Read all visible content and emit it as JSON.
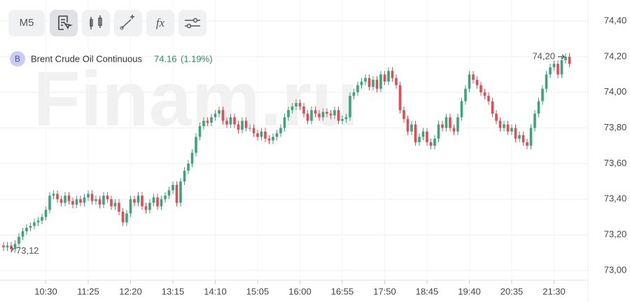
{
  "toolbar": {
    "timeframe": "M5",
    "function_icon": "fx"
  },
  "chart_data": {
    "type": "candlestick",
    "watermark": "Finam.ru",
    "legend": {
      "badge": "B",
      "title": "Brent Crude Oil Continuous",
      "price": "74.16",
      "change": "(1.19%)"
    },
    "up_color": "#3aa57b",
    "down_color": "#e04d55",
    "grid": true,
    "ylim": [
      72.945,
      74.518
    ],
    "yticks": [
      {
        "value": 73.0,
        "label": "73,00"
      },
      {
        "value": 73.2,
        "label": "73,20"
      },
      {
        "value": 73.4,
        "label": "73,40"
      },
      {
        "value": 73.6,
        "label": "73,60"
      },
      {
        "value": 73.8,
        "label": "73,80"
      },
      {
        "value": 74.0,
        "label": "74,00"
      },
      {
        "value": 74.2,
        "label": "74,20"
      },
      {
        "value": 74.4,
        "label": "74,40"
      }
    ],
    "annotations": [
      {
        "value": 74.2,
        "label": "74,20"
      },
      {
        "value": 73.12,
        "label": "73,12"
      }
    ],
    "categories": [
      null,
      null,
      null,
      null,
      null,
      null,
      null,
      null,
      null,
      null,
      null,
      "10:30",
      null,
      null,
      null,
      null,
      null,
      null,
      null,
      null,
      null,
      null,
      "11:25",
      null,
      null,
      null,
      null,
      null,
      null,
      null,
      null,
      null,
      null,
      "12:20",
      null,
      null,
      null,
      null,
      null,
      null,
      null,
      null,
      null,
      null,
      "13:15",
      null,
      null,
      null,
      null,
      null,
      null,
      null,
      null,
      null,
      null,
      "14:10",
      null,
      null,
      null,
      null,
      null,
      null,
      null,
      null,
      null,
      null,
      "15:05",
      null,
      null,
      null,
      null,
      null,
      null,
      null,
      null,
      null,
      null,
      "16:00",
      null,
      null,
      null,
      null,
      null,
      null,
      null,
      null,
      null,
      null,
      "16:55",
      null,
      null,
      null,
      null,
      null,
      null,
      null,
      null,
      null,
      null,
      "17:50",
      null,
      null,
      null,
      null,
      null,
      null,
      null,
      null,
      null,
      null,
      "18:45",
      null,
      null,
      null,
      null,
      null,
      null,
      null,
      null,
      null,
      null,
      "19:40",
      null,
      null,
      null,
      null,
      null,
      null,
      null,
      null,
      null,
      null,
      "20:35",
      null,
      null,
      null,
      null,
      null,
      null,
      null,
      null,
      null,
      null,
      "21:30",
      null,
      null,
      null,
      null
    ],
    "open": [
      73.14,
      73.13,
      73.14,
      73.12,
      73.15,
      73.19,
      73.22,
      73.24,
      73.25,
      73.27,
      73.28,
      73.3,
      73.34,
      73.42,
      73.43,
      73.4,
      73.38,
      73.42,
      73.39,
      73.37,
      73.4,
      73.38,
      73.41,
      73.43,
      73.39,
      73.4,
      73.37,
      73.42,
      73.4,
      73.36,
      73.38,
      73.33,
      73.27,
      73.32,
      73.4,
      73.38,
      73.42,
      73.36,
      73.34,
      73.38,
      73.41,
      73.36,
      73.4,
      73.42,
      73.45,
      73.48,
      73.38,
      73.5,
      73.56,
      73.6,
      73.66,
      73.75,
      73.81,
      73.84,
      73.83,
      73.86,
      73.88,
      73.9,
      73.84,
      73.82,
      73.86,
      73.82,
      73.79,
      73.84,
      73.8,
      73.8,
      73.77,
      73.75,
      73.78,
      73.74,
      73.73,
      73.75,
      73.77,
      73.8,
      73.86,
      73.9,
      73.92,
      73.94,
      73.92,
      73.88,
      73.84,
      73.9,
      73.88,
      73.86,
      73.89,
      73.88,
      73.87,
      73.9,
      73.84,
      73.85,
      73.86,
      73.98,
      74.0,
      74.04,
      74.06,
      74.08,
      74.03,
      74.07,
      74.02,
      74.1,
      74.06,
      74.12,
      74.08,
      74.04,
      73.9,
      73.85,
      73.78,
      73.82,
      73.72,
      73.75,
      73.78,
      73.72,
      73.7,
      73.74,
      73.82,
      73.8,
      73.86,
      73.8,
      73.78,
      73.86,
      73.95,
      74.02,
      74.1,
      74.07,
      74.04,
      74.0,
      73.98,
      73.95,
      73.88,
      73.84,
      73.8,
      73.82,
      73.78,
      73.8,
      73.74,
      73.76,
      73.72,
      73.7,
      73.8,
      73.88,
      73.95,
      74.02,
      74.1,
      74.14,
      74.16,
      74.1,
      74.18,
      74.2
    ],
    "high": [
      73.16,
      73.16,
      73.16,
      73.17,
      73.21,
      73.24,
      73.26,
      73.27,
      73.29,
      73.3,
      73.32,
      73.36,
      73.44,
      73.45,
      73.45,
      73.42,
      73.44,
      73.44,
      73.41,
      73.42,
      73.42,
      73.43,
      73.45,
      73.45,
      73.42,
      73.42,
      73.44,
      73.44,
      73.42,
      73.4,
      73.4,
      73.35,
      73.34,
      73.42,
      73.42,
      73.44,
      73.44,
      73.38,
      73.4,
      73.43,
      73.43,
      73.42,
      73.44,
      73.47,
      73.5,
      73.5,
      73.52,
      73.58,
      73.62,
      73.68,
      73.77,
      73.83,
      73.86,
      73.86,
      73.88,
      73.9,
      73.92,
      73.92,
      73.86,
      73.88,
      73.88,
      73.84,
      73.86,
      73.86,
      73.82,
      73.82,
      73.79,
      73.8,
      73.8,
      73.76,
      73.77,
      73.79,
      73.82,
      73.88,
      73.92,
      73.94,
      73.96,
      73.96,
      73.94,
      73.9,
      73.92,
      73.92,
      73.9,
      73.91,
      73.91,
      73.9,
      73.92,
      73.92,
      73.87,
      73.88,
      74.0,
      74.02,
      74.06,
      74.08,
      74.1,
      74.1,
      74.09,
      74.09,
      74.12,
      74.12,
      74.14,
      74.14,
      74.1,
      74.06,
      73.92,
      73.87,
      73.84,
      73.84,
      73.77,
      73.8,
      73.8,
      73.74,
      73.76,
      73.84,
      73.84,
      73.88,
      73.88,
      73.82,
      73.88,
      73.97,
      74.04,
      74.12,
      74.12,
      74.09,
      74.06,
      74.02,
      74.0,
      73.97,
      73.9,
      73.86,
      73.84,
      73.84,
      73.82,
      73.82,
      73.78,
      73.78,
      73.74,
      73.82,
      73.9,
      73.97,
      74.04,
      74.12,
      74.16,
      74.18,
      74.18,
      74.2,
      74.22,
      74.22
    ],
    "low": [
      73.11,
      73.11,
      73.1,
      73.1,
      73.13,
      73.17,
      73.2,
      73.22,
      73.23,
      73.25,
      73.26,
      73.28,
      73.32,
      73.4,
      73.38,
      73.36,
      73.36,
      73.37,
      73.35,
      73.35,
      73.36,
      73.36,
      73.39,
      73.37,
      73.37,
      73.35,
      73.35,
      73.38,
      73.34,
      73.34,
      73.31,
      73.25,
      73.25,
      73.3,
      73.36,
      73.36,
      73.34,
      73.32,
      73.32,
      73.36,
      73.34,
      73.34,
      73.38,
      73.4,
      73.43,
      73.36,
      73.36,
      73.48,
      73.54,
      73.58,
      73.64,
      73.73,
      73.79,
      73.81,
      73.81,
      73.84,
      73.86,
      73.82,
      73.8,
      73.8,
      73.8,
      73.77,
      73.77,
      73.78,
      73.78,
      73.75,
      73.73,
      73.73,
      73.72,
      73.71,
      73.71,
      73.73,
      73.75,
      73.78,
      73.84,
      73.88,
      73.9,
      73.9,
      73.86,
      73.82,
      73.82,
      73.86,
      73.84,
      73.84,
      73.86,
      73.85,
      73.85,
      73.82,
      73.82,
      73.83,
      73.84,
      73.96,
      73.98,
      74.02,
      74.04,
      74.01,
      74.01,
      74.0,
      74.0,
      74.04,
      74.04,
      74.06,
      74.02,
      73.88,
      73.83,
      73.76,
      73.76,
      73.7,
      73.7,
      73.73,
      73.7,
      73.68,
      73.68,
      73.72,
      73.78,
      73.78,
      73.78,
      73.76,
      73.76,
      73.84,
      73.93,
      74.0,
      74.05,
      74.02,
      73.98,
      73.96,
      73.93,
      73.86,
      73.82,
      73.78,
      73.78,
      73.76,
      73.76,
      73.72,
      73.72,
      73.7,
      73.68,
      73.68,
      73.78,
      73.86,
      73.93,
      74.0,
      74.08,
      74.12,
      74.08,
      74.08,
      74.16,
      74.14
    ],
    "close": [
      73.13,
      73.14,
      73.12,
      73.15,
      73.19,
      73.22,
      73.24,
      73.25,
      73.27,
      73.28,
      73.3,
      73.34,
      73.42,
      73.43,
      73.4,
      73.38,
      73.42,
      73.39,
      73.37,
      73.4,
      73.38,
      73.41,
      73.43,
      73.39,
      73.4,
      73.37,
      73.42,
      73.4,
      73.36,
      73.38,
      73.33,
      73.27,
      73.32,
      73.4,
      73.38,
      73.42,
      73.36,
      73.34,
      73.38,
      73.41,
      73.36,
      73.4,
      73.42,
      73.45,
      73.48,
      73.38,
      73.5,
      73.56,
      73.6,
      73.66,
      73.75,
      73.81,
      73.84,
      73.83,
      73.86,
      73.88,
      73.9,
      73.84,
      73.82,
      73.86,
      73.82,
      73.79,
      73.84,
      73.8,
      73.8,
      73.77,
      73.75,
      73.78,
      73.74,
      73.73,
      73.75,
      73.77,
      73.8,
      73.86,
      73.9,
      73.92,
      73.94,
      73.92,
      73.88,
      73.84,
      73.9,
      73.88,
      73.86,
      73.89,
      73.88,
      73.87,
      73.9,
      73.84,
      73.85,
      73.86,
      73.98,
      74.0,
      74.04,
      74.06,
      74.08,
      74.03,
      74.07,
      74.02,
      74.1,
      74.06,
      74.12,
      74.08,
      74.04,
      73.9,
      73.85,
      73.78,
      73.82,
      73.72,
      73.75,
      73.78,
      73.72,
      73.7,
      73.74,
      73.82,
      73.8,
      73.86,
      73.8,
      73.78,
      73.86,
      73.95,
      74.02,
      74.1,
      74.07,
      74.04,
      74.0,
      73.98,
      73.95,
      73.88,
      73.84,
      73.8,
      73.82,
      73.78,
      73.8,
      73.74,
      73.76,
      73.72,
      73.7,
      73.8,
      73.88,
      73.95,
      74.02,
      74.1,
      74.14,
      74.16,
      74.1,
      74.18,
      74.2,
      74.16
    ]
  }
}
